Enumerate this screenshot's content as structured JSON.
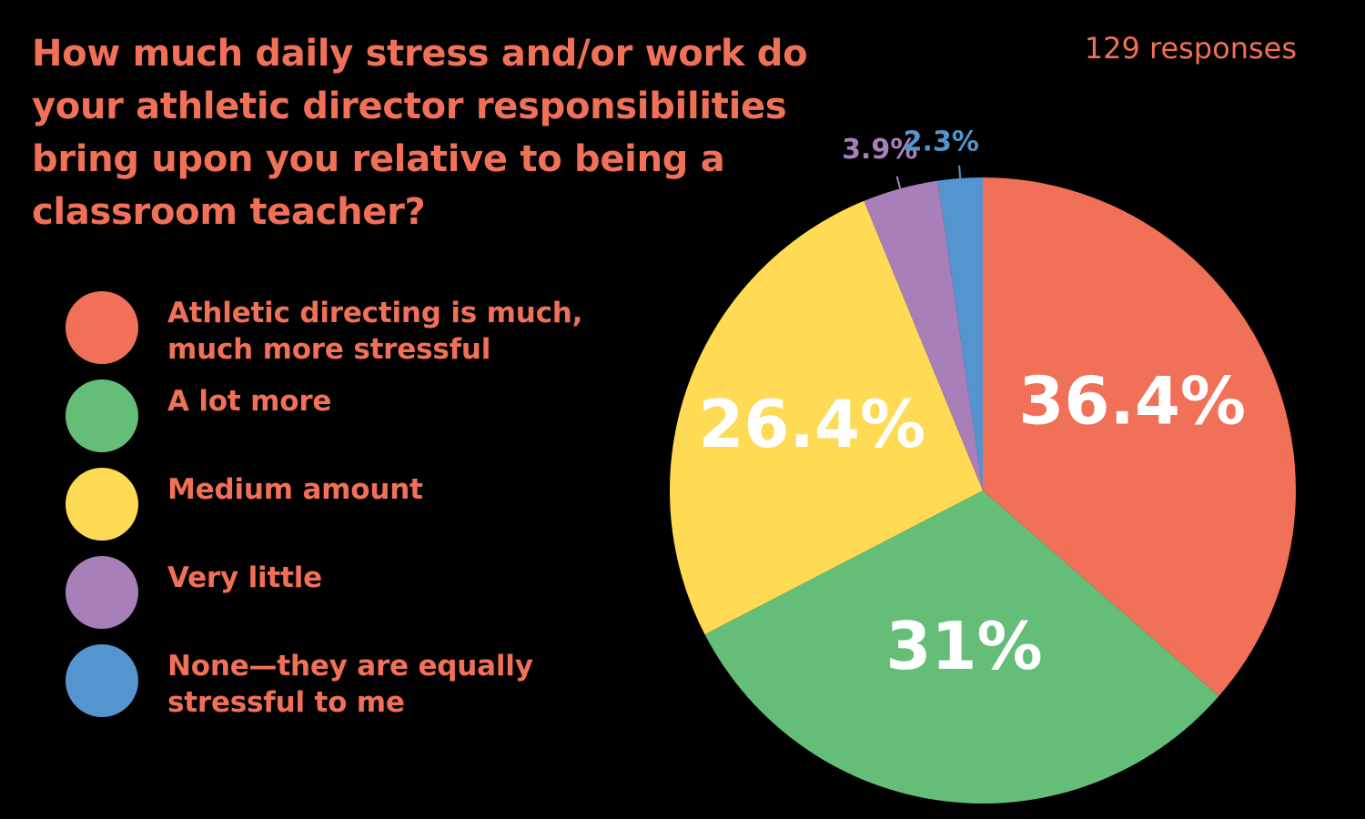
{
  "title": "How much daily stress and/or work do your athletic director responsibilities bring upon you relative to being a classroom teacher?",
  "responses": "129 responses",
  "chart_data": {
    "type": "pie",
    "title": "How much daily stress and/or work do your athletic director responsibilities bring upon you relative to being a classroom teacher?",
    "total_responses": 129,
    "legend_position": "left",
    "slices": [
      {
        "label": "Athletic directing is much, much more stressful",
        "value": 36.4,
        "display": "36.4%",
        "color": "#F07058"
      },
      {
        "label": "A lot more",
        "value": 31,
        "display": "31%",
        "color": "#65BE78"
      },
      {
        "label": "Medium amount",
        "value": 26.4,
        "display": "26.4%",
        "color": "#FFDA55"
      },
      {
        "label": "Very little",
        "value": 3.9,
        "display": "3.9%",
        "color": "#A97FBA"
      },
      {
        "label": "None—they are equally stressful to me",
        "value": 2.3,
        "display": "2.3%",
        "color": "#5495CF"
      }
    ]
  }
}
